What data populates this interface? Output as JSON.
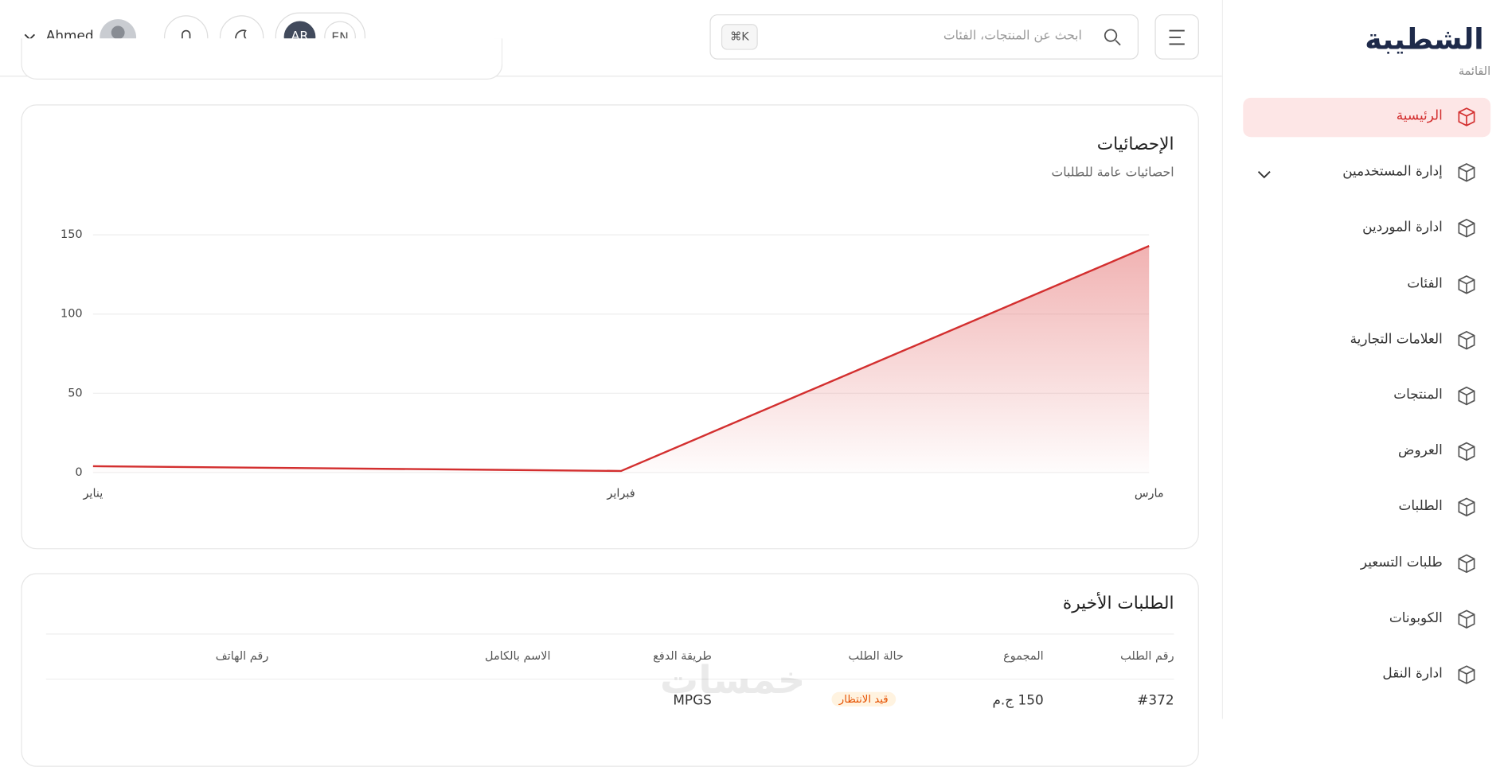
{
  "sidebar": {
    "logo": "الشطيبة",
    "menu_label": "القائمة",
    "items": [
      "الرئيسية",
      "إدارة المستخدمين",
      "ادارة الموردين",
      "الفئات",
      "العلامات التجارية",
      "المنتجات",
      "العروض",
      "الطلبات",
      "طلبات التسعير",
      "الكوبونات",
      "ادارة النقل"
    ]
  },
  "header": {
    "search_placeholder": "ابحث عن المنتجات، الفئات",
    "shortcut": "⌘K",
    "lang_ar": "AR",
    "lang_en": "EN",
    "user": "Ahmed"
  },
  "chart_data": {
    "type": "line",
    "title": "الإحصائيات",
    "subtitle": "احصائيات عامة للطلبات",
    "categories": [
      "يناير",
      "فبراير",
      "مارس"
    ],
    "values": [
      4,
      1,
      143
    ],
    "color": "#d32f2f",
    "ylim": [
      0,
      150
    ],
    "yticks": [
      0,
      50,
      100,
      150
    ],
    "grid": true
  },
  "orders": {
    "title": "الطلبات الأخيرة",
    "columns": [
      "رقم الطلب",
      "المجموع",
      "حالة الطلب",
      "طريقة الدفع",
      "الاسم بالكامل",
      "رقم الهاتف"
    ],
    "rows": [
      [
        "#372",
        "150 ج.م",
        "قيد الانتظار",
        "MPGS"
      ]
    ]
  },
  "watermark": "خمسات"
}
